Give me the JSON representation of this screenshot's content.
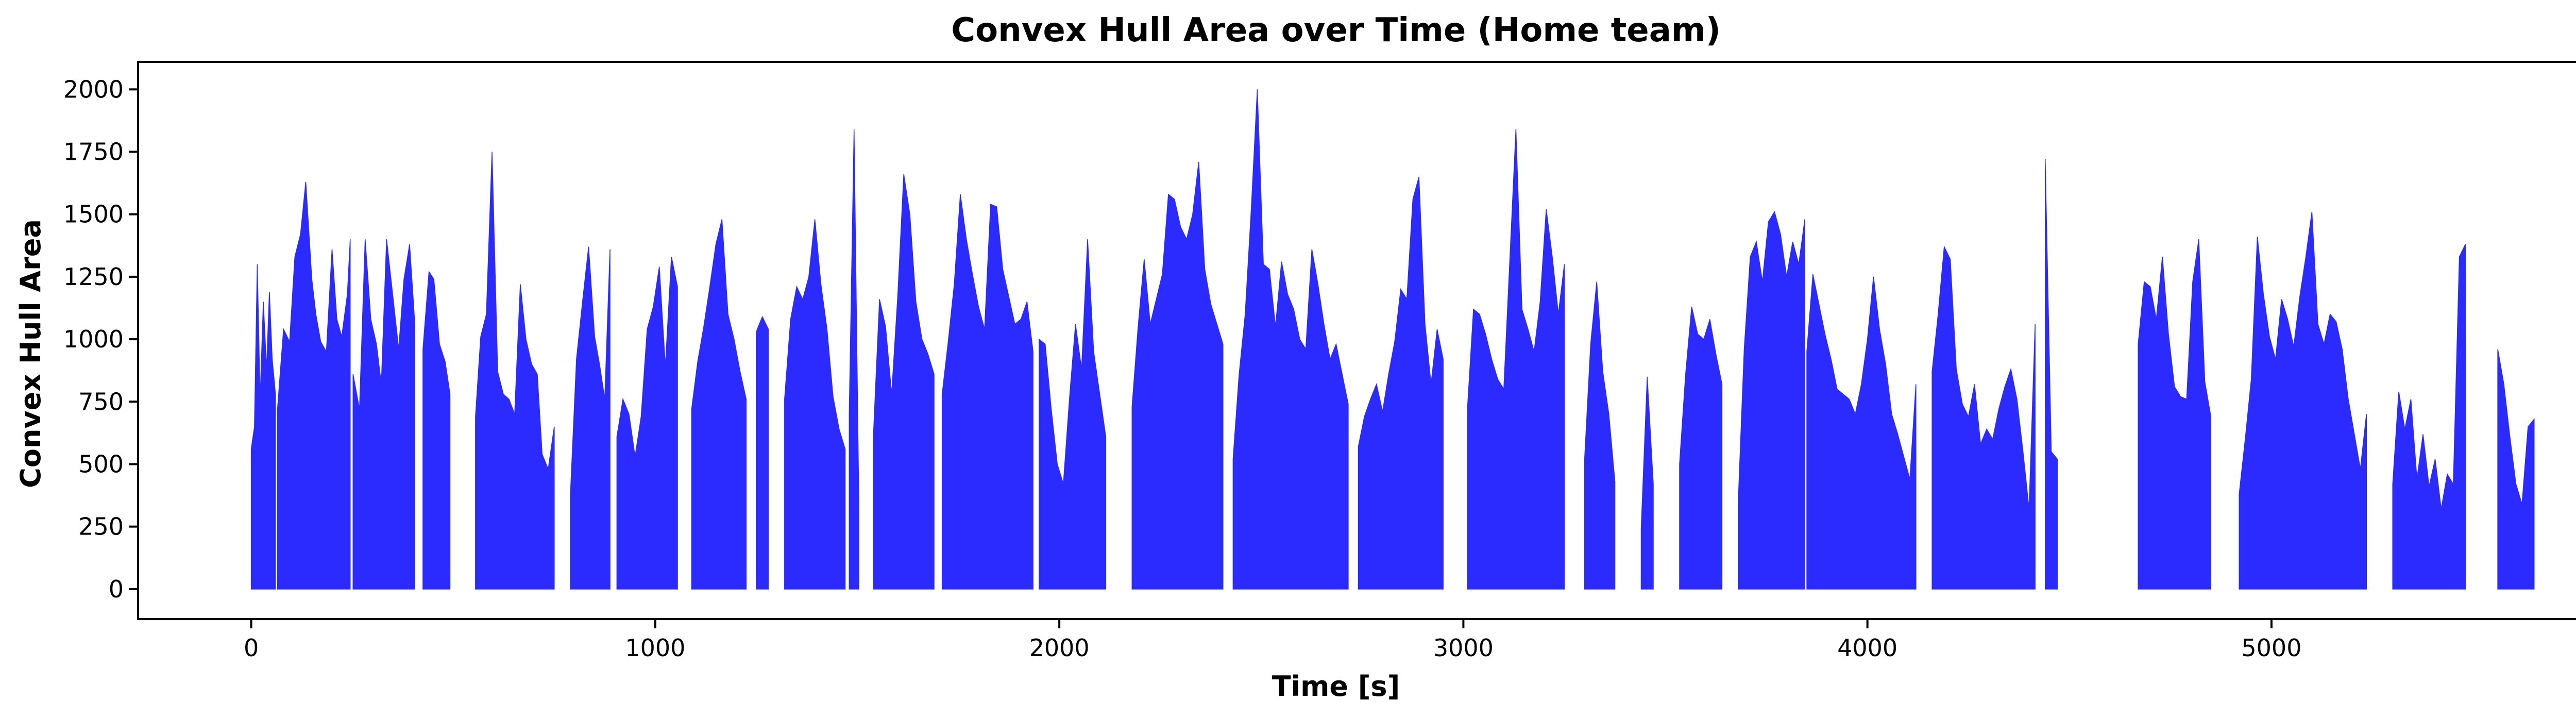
{
  "chart_data": {
    "type": "area",
    "title": "Convex Hull Area over Time (Home team)",
    "xlabel": "Time [s]",
    "ylabel": "Convex Hull Area",
    "xlim": [
      -280,
      5950
    ],
    "ylim": [
      -120,
      2110
    ],
    "x_ticks": [
      0,
      1000,
      2000,
      3000,
      4000,
      5000
    ],
    "y_ticks": [
      0,
      250,
      500,
      750,
      1000,
      1250,
      1500,
      1750,
      2000
    ],
    "x_tick_labels": [
      "0",
      "1000",
      "2000",
      "3000",
      "4000",
      "5000"
    ],
    "y_tick_labels": [
      "0",
      "250",
      "500",
      "750",
      "1000",
      "1250",
      "1500",
      "1750",
      "2000"
    ],
    "grid": false,
    "legend": "none",
    "fill_color": "#2b2bff",
    "series": [
      {
        "segments": [
          {
            "x": [
              0,
              8,
              15,
              22,
              30,
              38,
              45,
              52,
              60
            ],
            "y": [
              560,
              650,
              1300,
              760,
              1150,
              880,
              1190,
              920,
              780
            ]
          },
          {
            "x": [
              65,
              80,
              95,
              108,
              122,
              135,
              150,
              160,
              172,
              186,
              200,
              212,
              224,
              238,
              245
            ],
            "y": [
              720,
              1040,
              990,
              1330,
              1420,
              1630,
              1240,
              1100,
              990,
              950,
              1360,
              1080,
              1010,
              1180,
              1400
            ]
          },
          {
            "x": [
              252,
              268,
              282,
              296,
              310,
              322,
              335,
              350,
              365,
              378,
              392,
              405
            ],
            "y": [
              860,
              720,
              1400,
              1080,
              980,
              820,
              1400,
              1180,
              960,
              1240,
              1380,
              1060
            ]
          },
          {
            "x": [
              425,
              440,
              452,
              466,
              480,
              492
            ],
            "y": [
              960,
              1270,
              1240,
              980,
              910,
              780
            ]
          },
          {
            "x": [
              555,
              568,
              582,
              596,
              610,
              624,
              638,
              652,
              666,
              680,
              694,
              708,
              720,
              735,
              750
            ],
            "y": [
              690,
              1010,
              1100,
              1750,
              870,
              780,
              760,
              700,
              1220,
              1000,
              900,
              860,
              540,
              480,
              650
            ]
          },
          {
            "x": [
              790,
              805,
              820,
              835,
              850,
              862,
              875,
              888
            ],
            "y": [
              380,
              920,
              1150,
              1370,
              1010,
              900,
              760,
              1360
            ]
          },
          {
            "x": [
              905,
              920,
              935,
              950,
              965,
              980,
              995,
              1010,
              1025,
              1040,
              1055
            ],
            "y": [
              610,
              760,
              700,
              530,
              690,
              1040,
              1130,
              1290,
              890,
              1330,
              1210
            ]
          },
          {
            "x": [
              1090,
              1105,
              1120,
              1135,
              1150,
              1165,
              1180,
              1195,
              1210,
              1225
            ],
            "y": [
              720,
              910,
              1050,
              1210,
              1380,
              1480,
              1100,
              1000,
              870,
              760
            ]
          },
          {
            "x": [
              1250,
              1265,
              1280
            ],
            "y": [
              1030,
              1090,
              1040
            ]
          },
          {
            "x": [
              1320,
              1335,
              1350,
              1365,
              1380,
              1395,
              1410,
              1425,
              1440,
              1455,
              1470
            ],
            "y": [
              760,
              1080,
              1210,
              1160,
              1250,
              1480,
              1220,
              1040,
              770,
              640,
              560
            ]
          },
          {
            "x": [
              1480,
              1492,
              1504
            ],
            "y": [
              700,
              1840,
              320
            ]
          },
          {
            "x": [
              1540,
              1555,
              1570,
              1585,
              1600,
              1615,
              1630,
              1645,
              1660,
              1675,
              1690
            ],
            "y": [
              620,
              1160,
              1050,
              780,
              1170,
              1660,
              1500,
              1150,
              1000,
              940,
              860
            ]
          },
          {
            "x": [
              1710,
              1725,
              1740,
              1755,
              1770,
              1785,
              1800,
              1815,
              1830,
              1845,
              1860,
              1875,
              1890,
              1905,
              1920,
              1935
            ],
            "y": [
              780,
              990,
              1220,
              1580,
              1400,
              1260,
              1130,
              1040,
              1540,
              1530,
              1280,
              1170,
              1060,
              1080,
              1150,
              950
            ]
          },
          {
            "x": [
              1950,
              1965,
              1980,
              1995,
              2010,
              2025,
              2040,
              2055,
              2070,
              2085,
              2100,
              2115
            ],
            "y": [
              1000,
              980,
              720,
              500,
              420,
              760,
              1060,
              880,
              1400,
              950,
              780,
              610
            ]
          },
          {
            "x": [
              2180,
              2195,
              2210,
              2225,
              2240,
              2255,
              2270,
              2285,
              2300,
              2315,
              2330,
              2345,
              2360,
              2375,
              2390,
              2405
            ],
            "y": [
              730,
              1050,
              1320,
              1060,
              1160,
              1260,
              1580,
              1560,
              1450,
              1400,
              1500,
              1710,
              1280,
              1140,
              1060,
              980
            ]
          },
          {
            "x": [
              2430,
              2445,
              2460,
              2475,
              2490,
              2505,
              2520,
              2535,
              2550,
              2565,
              2580,
              2595,
              2610,
              2625,
              2640,
              2655,
              2670,
              2685,
              2700,
              2715
            ],
            "y": [
              520,
              860,
              1100,
              1520,
              2000,
              1300,
              1280,
              1050,
              1310,
              1180,
              1120,
              1000,
              960,
              1360,
              1220,
              1060,
              920,
              980,
              860,
              740
            ]
          },
          {
            "x": [
              2740,
              2755,
              2770,
              2785,
              2800,
              2815,
              2830,
              2845,
              2860,
              2875,
              2890,
              2905,
              2920,
              2935,
              2950
            ],
            "y": [
              570,
              690,
              760,
              820,
              710,
              860,
              990,
              1200,
              1160,
              1560,
              1650,
              1060,
              820,
              1040,
              920
            ]
          },
          {
            "x": [
              3010,
              3025,
              3040,
              3055,
              3070,
              3085,
              3100,
              3115,
              3130,
              3145,
              3160,
              3175,
              3190,
              3205,
              3220,
              3235,
              3250
            ],
            "y": [
              720,
              1120,
              1100,
              1020,
              920,
              840,
              800,
              1320,
              1840,
              1120,
              1040,
              950,
              1150,
              1520,
              1330,
              1100,
              1300
            ]
          },
          {
            "x": [
              3300,
              3315,
              3330,
              3345,
              3360,
              3375
            ],
            "y": [
              520,
              980,
              1230,
              870,
              700,
              430
            ]
          },
          {
            "x": [
              3440,
              3455,
              3470
            ],
            "y": [
              240,
              850,
              420
            ]
          },
          {
            "x": [
              3535,
              3550,
              3565,
              3580,
              3595,
              3610,
              3625,
              3640
            ],
            "y": [
              500,
              860,
              1130,
              1020,
              1000,
              1080,
              940,
              820
            ]
          },
          {
            "x": [
              3680,
              3695,
              3710,
              3725,
              3740,
              3755,
              3770,
              3785,
              3800,
              3815,
              3830,
              3845
            ],
            "y": [
              340,
              960,
              1330,
              1390,
              1230,
              1470,
              1510,
              1420,
              1250,
              1390,
              1300,
              1480
            ]
          },
          {
            "x": [
              3850,
              3865,
              3880,
              3895,
              3910,
              3925,
              3940,
              3955,
              3970,
              3985,
              4000,
              4015,
              4030,
              4045,
              4060,
              4075,
              4090,
              4105,
              4120
            ],
            "y": [
              950,
              1260,
              1140,
              1020,
              920,
              800,
              780,
              760,
              700,
              820,
              1000,
              1250,
              1040,
              900,
              700,
              620,
              530,
              440,
              820
            ]
          },
          {
            "x": [
              4160,
              4175,
              4190,
              4205,
              4220,
              4235,
              4250,
              4265,
              4280,
              4295,
              4310,
              4325,
              4340,
              4355,
              4370,
              4385,
              4400,
              4415
            ],
            "y": [
              870,
              1100,
              1370,
              1320,
              880,
              740,
              690,
              820,
              580,
              640,
              600,
              720,
              810,
              880,
              760,
              550,
              320,
              1060
            ]
          },
          {
            "x": [
              4440,
              4455,
              4470
            ],
            "y": [
              1720,
              550,
              520
            ]
          },
          {
            "x": [
              4670,
              4685,
              4700,
              4715,
              4730,
              4745,
              4760,
              4775,
              4790,
              4805,
              4820,
              4835,
              4850
            ],
            "y": [
              980,
              1230,
              1210,
              1080,
              1330,
              1020,
              810,
              770,
              760,
              1230,
              1400,
              830,
              690
            ]
          },
          {
            "x": [
              4920,
              4935,
              4950,
              4965,
              4980,
              4995,
              5010,
              5025,
              5040,
              5055,
              5070,
              5085,
              5100,
              5115,
              5130,
              5145,
              5160,
              5175,
              5190,
              5205,
              5220,
              5235
            ],
            "y": [
              380,
              600,
              840,
              1410,
              1180,
              1010,
              920,
              1160,
              1080,
              970,
              1170,
              1330,
              1510,
              1060,
              980,
              1100,
              1070,
              960,
              760,
              620,
              480,
              700
            ]
          },
          {
            "x": [
              5300,
              5315,
              5330,
              5345,
              5360,
              5375,
              5390,
              5405,
              5420,
              5435,
              5450,
              5465,
              5480
            ],
            "y": [
              420,
              790,
              640,
              760,
              440,
              620,
              410,
              520,
              320,
              460,
              420,
              1330,
              1380
            ]
          },
          {
            "x": [
              5560,
              5575,
              5590,
              5605,
              5620,
              5635,
              5650
            ],
            "y": [
              960,
              820,
              610,
              420,
              340,
              650,
              680
            ]
          }
        ]
      }
    ]
  }
}
